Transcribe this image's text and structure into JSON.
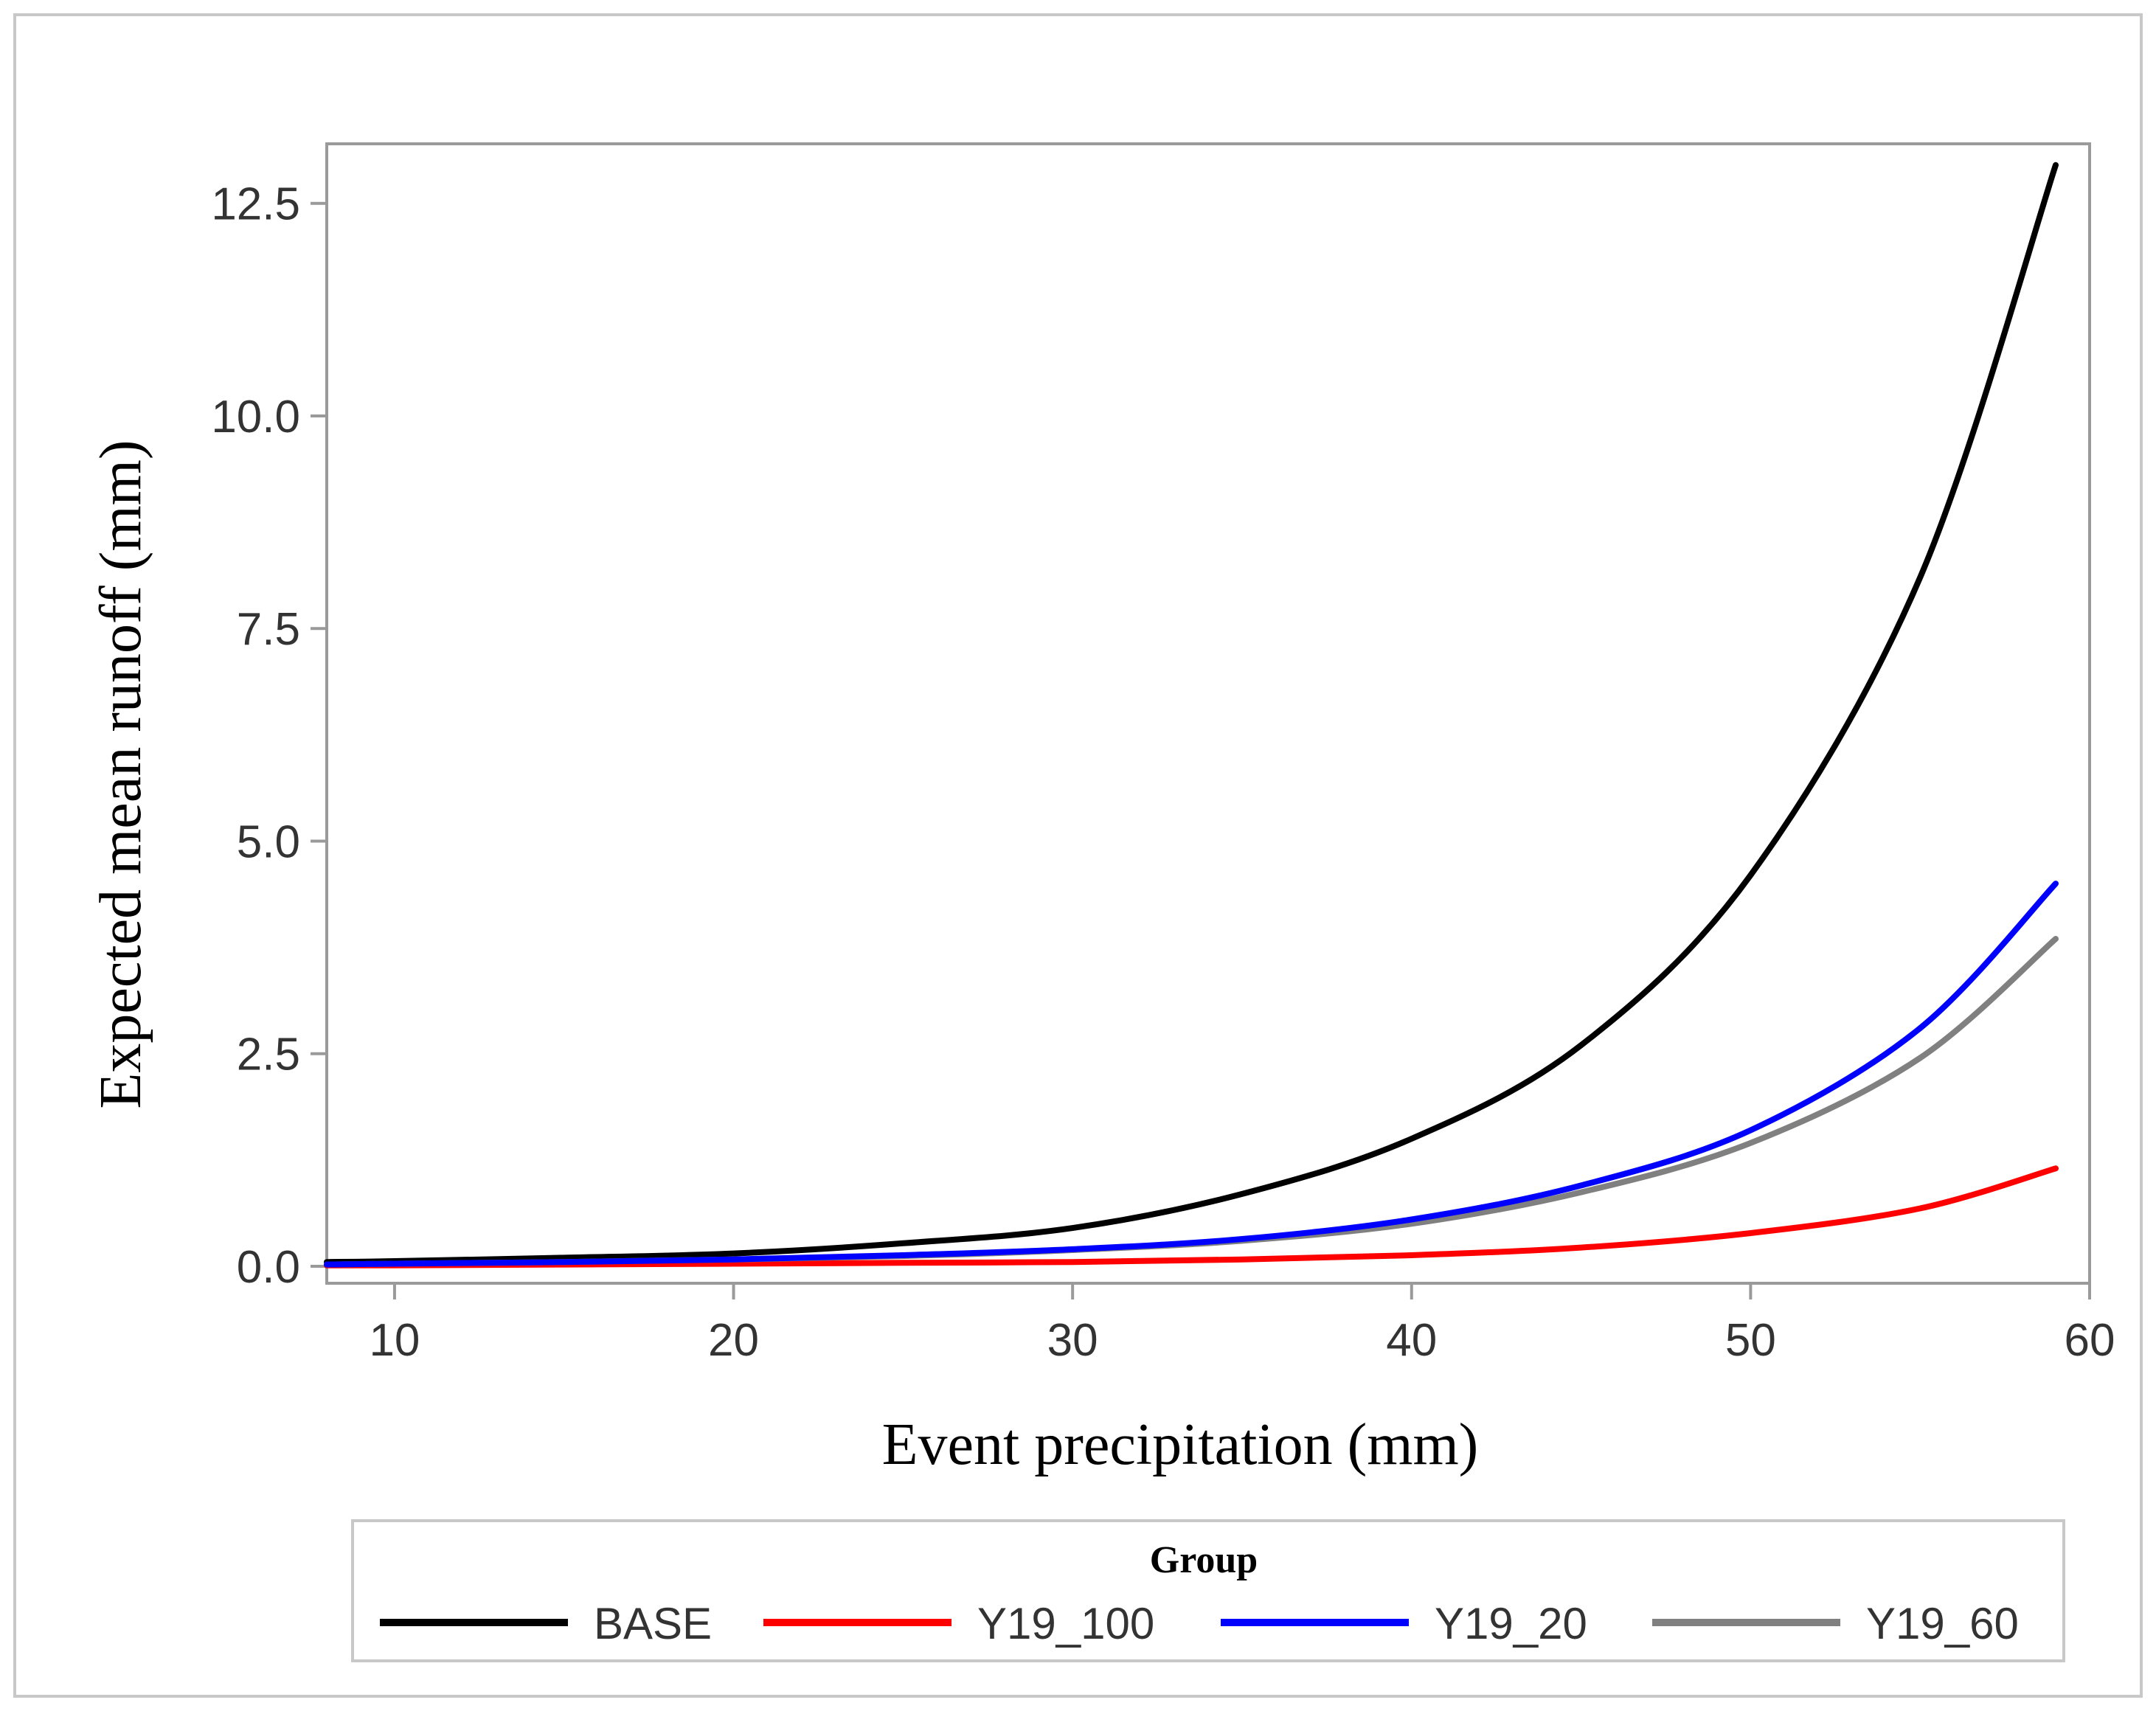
{
  "chart_data": {
    "type": "line",
    "title": "",
    "xlabel": "Event precipitation (mm)",
    "ylabel": "Expected mean runoff (mm)",
    "xlim": [
      8,
      60
    ],
    "ylim": [
      -0.2,
      13.2
    ],
    "xticks": [
      10,
      20,
      30,
      40,
      50,
      60
    ],
    "xtick_labels": [
      "10",
      "20",
      "30",
      "40",
      "50",
      "60"
    ],
    "yticks": [
      0.0,
      2.5,
      5.0,
      7.5,
      10.0,
      12.5
    ],
    "ytick_labels": [
      "0.0",
      "2.5",
      "5.0",
      "7.5",
      "10.0",
      "12.5"
    ],
    "grid": false,
    "legend": {
      "title": "Group",
      "position": "bottom"
    },
    "series": [
      {
        "name": "BASE",
        "color": "#000000",
        "x": [
          8,
          10,
          15,
          20,
          25,
          30,
          35,
          40,
          45,
          50,
          55,
          59
        ],
        "y": [
          0.05,
          0.06,
          0.1,
          0.15,
          0.27,
          0.45,
          0.85,
          1.5,
          2.6,
          4.6,
          8.1,
          12.95
        ]
      },
      {
        "name": "Y19_100",
        "color": "#ff0000",
        "x": [
          8,
          10,
          15,
          20,
          25,
          30,
          35,
          40,
          45,
          50,
          55,
          59
        ],
        "y": [
          0.01,
          0.01,
          0.02,
          0.03,
          0.04,
          0.05,
          0.08,
          0.13,
          0.22,
          0.39,
          0.68,
          1.15
        ]
      },
      {
        "name": "Y19_20",
        "color": "#0000ff",
        "x": [
          8,
          10,
          15,
          20,
          25,
          30,
          35,
          40,
          45,
          50,
          55,
          59
        ],
        "y": [
          0.02,
          0.03,
          0.05,
          0.08,
          0.13,
          0.2,
          0.32,
          0.55,
          0.95,
          1.6,
          2.8,
          4.5
        ]
      },
      {
        "name": "Y19_60",
        "color": "#808080",
        "x": [
          8,
          10,
          15,
          20,
          25,
          30,
          35,
          40,
          45,
          50,
          55,
          59
        ],
        "y": [
          0.02,
          0.03,
          0.05,
          0.08,
          0.12,
          0.19,
          0.3,
          0.5,
          0.87,
          1.45,
          2.45,
          3.85
        ]
      }
    ]
  }
}
